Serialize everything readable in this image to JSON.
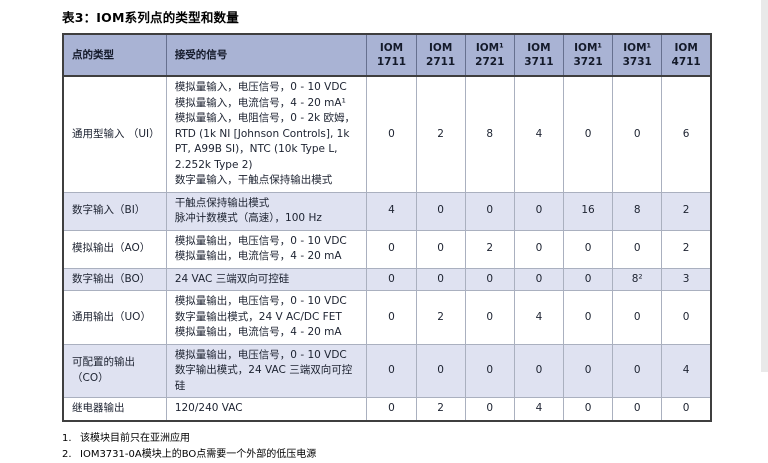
{
  "title": "表3：IOM系列点的类型和数量",
  "table": {
    "columns": {
      "point_type": "点的类型",
      "signal": "接受的信号",
      "models": [
        "IOM\n1711",
        "IOM\n2711",
        "IOM¹\n2721",
        "IOM\n3711",
        "IOM¹\n3721",
        "IOM¹\n3731",
        "IOM\n4711"
      ]
    },
    "rows": [
      {
        "type": "通用型输入 （UI）",
        "signals": "模拟量输入，电压信号，0 - 10 VDC\n模拟量输入，电流信号，4 - 20 mA¹\n模拟量输入，电阻信号，0 - 2k 欧姆，RTD (1k NI [Johnson Controls], 1k PT, A99B SI)，NTC (10k Type L, 2.252k Type 2)\n数字量输入，干触点保持输出模式",
        "values": [
          "0",
          "2",
          "8",
          "4",
          "0",
          "0",
          "6"
        ]
      },
      {
        "type": "数字输入（BI）",
        "signals": "干触点保持输出模式\n脉冲计数模式（高速），100 Hz",
        "values": [
          "4",
          "0",
          "0",
          "0",
          "16",
          "8",
          "2"
        ]
      },
      {
        "type": "模拟输出（AO）",
        "signals": "模拟量输出，电压信号，0 - 10 VDC\n模拟量输出，电流信号，4 - 20 mA",
        "values": [
          "0",
          "0",
          "2",
          "0",
          "0",
          "0",
          "2"
        ]
      },
      {
        "type": "数字输出（BO）",
        "signals": "24 VAC 三端双向可控硅",
        "values": [
          "0",
          "0",
          "0",
          "0",
          "0",
          "8²",
          "3"
        ]
      },
      {
        "type": "通用输出（UO）",
        "signals": "模拟量输出，电压信号，0 - 10 VDC\n数字量输出模式，24 V AC/DC FET\n模拟量输出，电流信号，4 - 20 mA",
        "values": [
          "0",
          "2",
          "0",
          "4",
          "0",
          "0",
          "0"
        ]
      },
      {
        "type": "可配置的输出 （CO）",
        "signals": "模拟量输出，电压信号，0 - 10 VDC\n数字输出模式，24 VAC 三端双向可控硅",
        "values": [
          "0",
          "0",
          "0",
          "0",
          "0",
          "0",
          "4"
        ]
      },
      {
        "type": "继电器输出",
        "signals": "120/240 VAC",
        "values": [
          "0",
          "2",
          "0",
          "4",
          "0",
          "0",
          "0"
        ]
      }
    ]
  },
  "footnotes": [
    {
      "num": "1.",
      "text": "该模块目前只在亚洲应用"
    },
    {
      "num": "2.",
      "text": "IOM3731-0A模块上的BO点需要一个外部的低压电源"
    }
  ],
  "colors": {
    "header_bg": "#a9b3d4",
    "row_highlight_bg": "#dfe2f1",
    "outer_border": "#3f3f3f"
  }
}
